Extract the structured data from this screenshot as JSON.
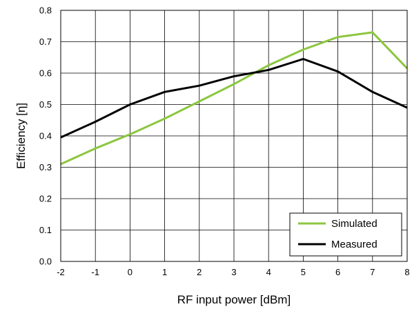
{
  "chart_data": {
    "type": "line",
    "xlabel": "RF input power [dBm]",
    "ylabel": "Efficiency [η]",
    "xlim": [
      -2,
      8
    ],
    "ylim": [
      0.0,
      0.8
    ],
    "xticks": [
      "-2",
      "-1",
      "0",
      "1",
      "2",
      "3",
      "4",
      "5",
      "6",
      "7",
      "8"
    ],
    "yticks": [
      "0.0",
      "0.1",
      "0.2",
      "0.3",
      "0.4",
      "0.5",
      "0.6",
      "0.7",
      "0.8"
    ],
    "grid": true,
    "legend_position": "bottom-right",
    "series": [
      {
        "name": "Simulated",
        "color": "#8cc63f",
        "x": [
          -2,
          -1,
          0,
          1,
          2,
          3,
          4,
          5,
          6,
          7,
          8
        ],
        "y": [
          0.31,
          0.36,
          0.405,
          0.455,
          0.51,
          0.565,
          0.625,
          0.675,
          0.715,
          0.73,
          0.615
        ]
      },
      {
        "name": "Measured",
        "color": "#000000",
        "x": [
          -2,
          -1,
          0,
          1,
          2,
          3,
          4,
          5,
          6,
          7,
          8
        ],
        "y": [
          0.395,
          0.445,
          0.5,
          0.54,
          0.56,
          0.59,
          0.61,
          0.645,
          0.605,
          0.54,
          0.49
        ]
      }
    ]
  }
}
